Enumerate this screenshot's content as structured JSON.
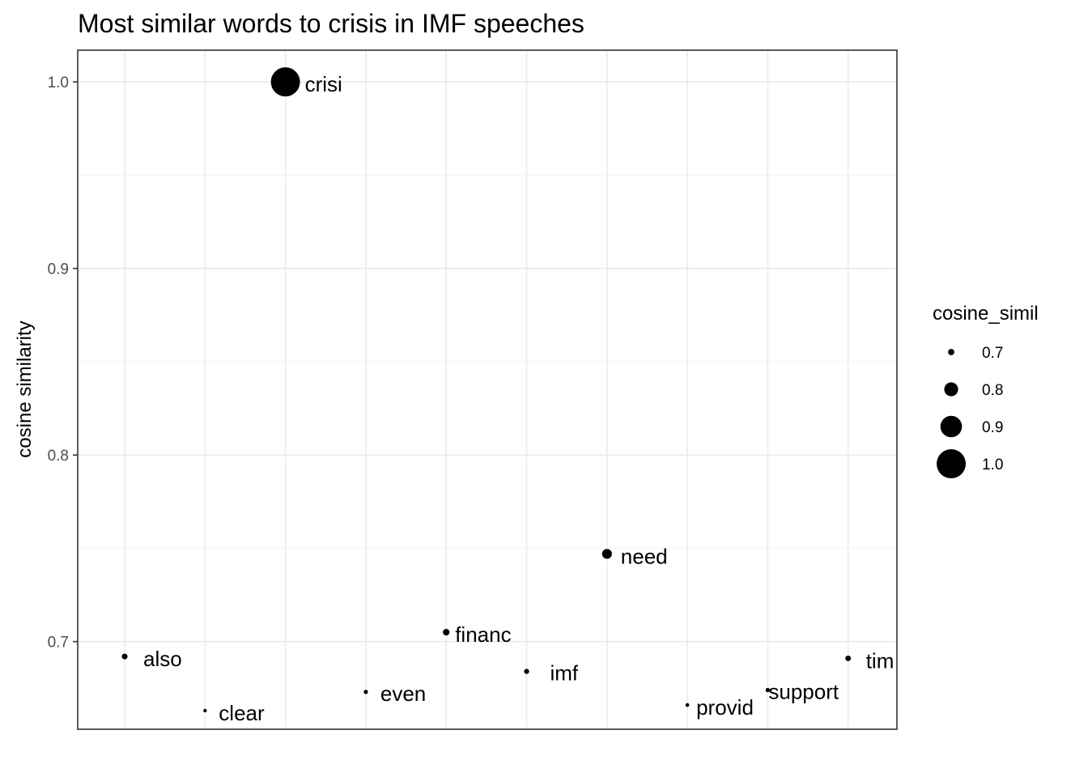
{
  "chart_data": {
    "type": "scatter",
    "title": "Most similar words to crisis in IMF speeches",
    "xlabel": "",
    "ylabel": "cosine similarity",
    "ylim": [
      0.653,
      1.017
    ],
    "y_ticks": [
      0.7,
      0.8,
      0.9,
      1.0
    ],
    "y_tick_labels": [
      "0.7",
      "0.8",
      "0.9",
      "1.0"
    ],
    "grid": true,
    "points": [
      {
        "label": "also",
        "x": 1,
        "y": 0.692
      },
      {
        "label": "clear",
        "x": 2,
        "y": 0.663
      },
      {
        "label": "crisi",
        "x": 3,
        "y": 1.0
      },
      {
        "label": "even",
        "x": 4,
        "y": 0.673
      },
      {
        "label": "financ",
        "x": 5,
        "y": 0.705
      },
      {
        "label": "imf",
        "x": 6,
        "y": 0.684
      },
      {
        "label": "need",
        "x": 7,
        "y": 0.747
      },
      {
        "label": "provid",
        "x": 8,
        "y": 0.666
      },
      {
        "label": "support",
        "x": 9,
        "y": 0.674
      },
      {
        "label": "tim",
        "x": 10,
        "y": 0.691
      }
    ],
    "size_legend": {
      "title": "cosine_simil",
      "placement": "right",
      "entries": [
        {
          "label": "0.7",
          "value": 0.7
        },
        {
          "label": "0.8",
          "value": 0.8
        },
        {
          "label": "0.9",
          "value": 0.9
        },
        {
          "label": "1.0",
          "value": 1.0
        }
      ]
    }
  }
}
